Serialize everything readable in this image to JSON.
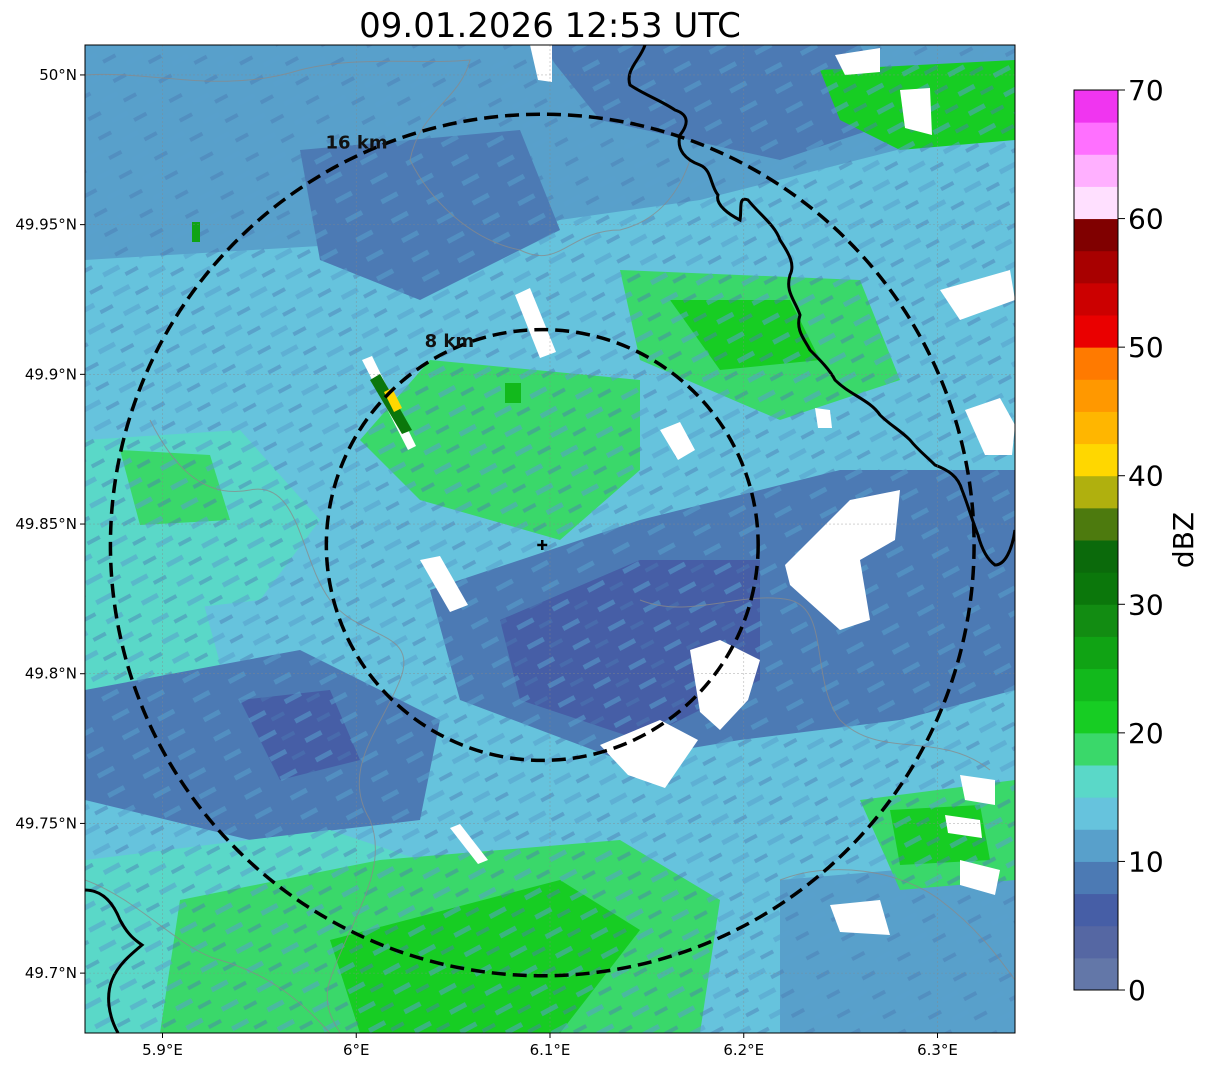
{
  "title": "09.01.2026 12:53 UTC",
  "map": {
    "x_ticks": [
      {
        "value": 5.9,
        "label": "5.9°E"
      },
      {
        "value": 6.0,
        "label": "6°E"
      },
      {
        "value": 6.1,
        "label": "6.1°E"
      },
      {
        "value": 6.2,
        "label": "6.2°E"
      },
      {
        "value": 6.3,
        "label": "6.3°E"
      }
    ],
    "y_ticks": [
      {
        "value": 50.0,
        "label": "50°N"
      },
      {
        "value": 49.95,
        "label": "49.95°N"
      },
      {
        "value": 49.9,
        "label": "49.9°N"
      },
      {
        "value": 49.85,
        "label": "49.85°N"
      },
      {
        "value": 49.8,
        "label": "49.8°N"
      },
      {
        "value": 49.75,
        "label": "49.75°N"
      },
      {
        "value": 49.7,
        "label": "49.7°N"
      }
    ],
    "xlim": [
      5.86,
      6.34
    ],
    "ylim": [
      49.68,
      50.01
    ],
    "radar_center": {
      "lon": 6.096,
      "lat": 49.843
    },
    "range_rings": [
      {
        "label": "8 km",
        "radius_km": 8
      },
      {
        "label": "16 km",
        "radius_km": 16
      }
    ],
    "grid": true
  },
  "colorbar": {
    "label": "dBZ",
    "min": 0,
    "max": 70,
    "step": 2.5,
    "tick_labels": [
      "0",
      "10",
      "20",
      "30",
      "40",
      "50",
      "60",
      "70"
    ],
    "colors": [
      "#6377a8",
      "#5567a3",
      "#465ea6",
      "#4c7ab4",
      "#58a0cb",
      "#66c3dd",
      "#5ad8c8",
      "#3ad86a",
      "#17cd23",
      "#12b91c",
      "#10a314",
      "#128c12",
      "#0b770b",
      "#0b6a0b",
      "#4d7a0e",
      "#b0b00e",
      "#ffd700",
      "#ffb600",
      "#ff9800",
      "#ff7a00",
      "#ea0000",
      "#cc0000",
      "#a80000",
      "#800000",
      "#ffe0ff",
      "#ffb0ff",
      "#ff70ff",
      "#f035f0"
    ]
  }
}
